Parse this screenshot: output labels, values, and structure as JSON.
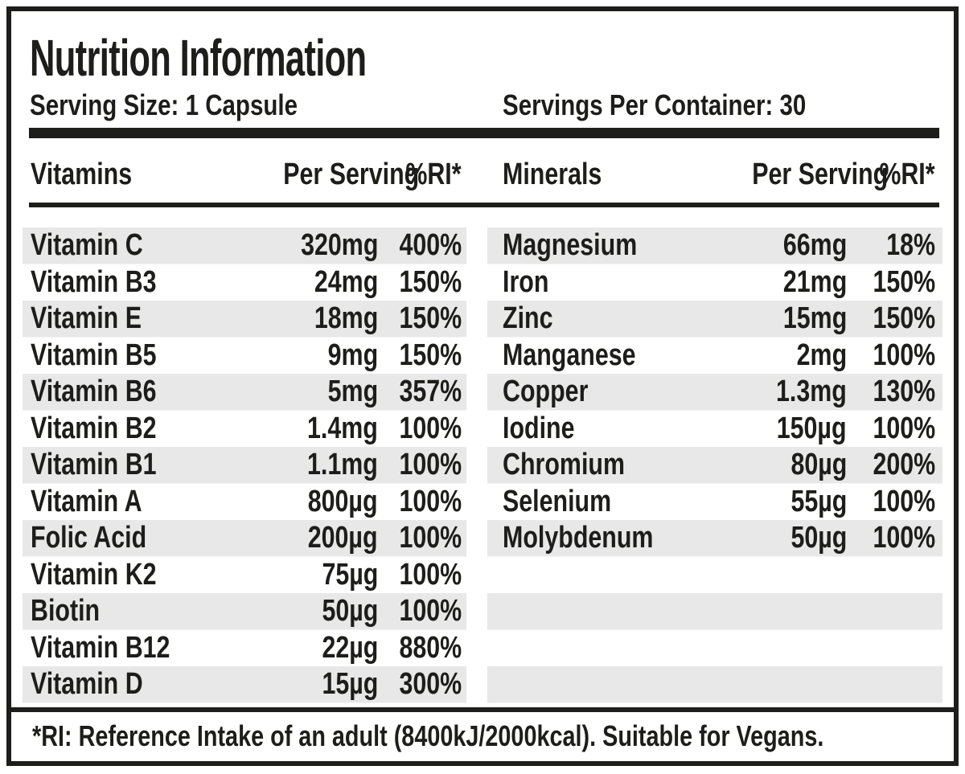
{
  "colors": {
    "ink": "#1d1d1b",
    "stripe": "#e8e8e8",
    "paper": "#ffffff"
  },
  "header": {
    "title": "Nutrition Information",
    "serving_size": "Serving Size: 1 Capsule",
    "servings_per_container": "Servings Per Container: 30"
  },
  "table": {
    "left": {
      "group": "Vitamins",
      "per_serving": "Per Serving",
      "ri": "%RI*"
    },
    "right": {
      "group": "Minerals",
      "per_serving": "Per Serving",
      "ri": "%RI*"
    }
  },
  "vitamins": [
    {
      "name": "Vitamin C",
      "amount": "320mg",
      "ri": "400%"
    },
    {
      "name": "Vitamin B3",
      "amount": "24mg",
      "ri": "150%"
    },
    {
      "name": "Vitamin E",
      "amount": "18mg",
      "ri": "150%"
    },
    {
      "name": "Vitamin B5",
      "amount": "9mg",
      "ri": "150%"
    },
    {
      "name": "Vitamin B6",
      "amount": "5mg",
      "ri": "357%"
    },
    {
      "name": "Vitamin B2",
      "amount": "1.4mg",
      "ri": "100%"
    },
    {
      "name": "Vitamin B1",
      "amount": "1.1mg",
      "ri": "100%"
    },
    {
      "name": "Vitamin A",
      "amount": "800µg",
      "ri": "100%"
    },
    {
      "name": "Folic Acid",
      "amount": "200µg",
      "ri": "100%"
    },
    {
      "name": "Vitamin K2",
      "amount": "75µg",
      "ri": "100%"
    },
    {
      "name": "Biotin",
      "amount": "50µg",
      "ri": "100%"
    },
    {
      "name": "Vitamin B12",
      "amount": "22µg",
      "ri": "880%"
    },
    {
      "name": "Vitamin D",
      "amount": "15µg",
      "ri": "300%"
    }
  ],
  "minerals": [
    {
      "name": "Magnesium",
      "amount": "66mg",
      "ri": "18%"
    },
    {
      "name": "Iron",
      "amount": "21mg",
      "ri": "150%"
    },
    {
      "name": "Zinc",
      "amount": "15mg",
      "ri": "150%"
    },
    {
      "name": "Manganese",
      "amount": "2mg",
      "ri": "100%"
    },
    {
      "name": "Copper",
      "amount": "1.3mg",
      "ri": "130%"
    },
    {
      "name": "Iodine",
      "amount": "150µg",
      "ri": "100%"
    },
    {
      "name": "Chromium",
      "amount": "80µg",
      "ri": "200%"
    },
    {
      "name": "Selenium",
      "amount": "55µg",
      "ri": "100%"
    },
    {
      "name": "Molybdenum",
      "amount": "50µg",
      "ri": "100%"
    }
  ],
  "footnote": "*RI: Reference Intake of an adult (8400kJ/2000kcal). Suitable for Vegans."
}
